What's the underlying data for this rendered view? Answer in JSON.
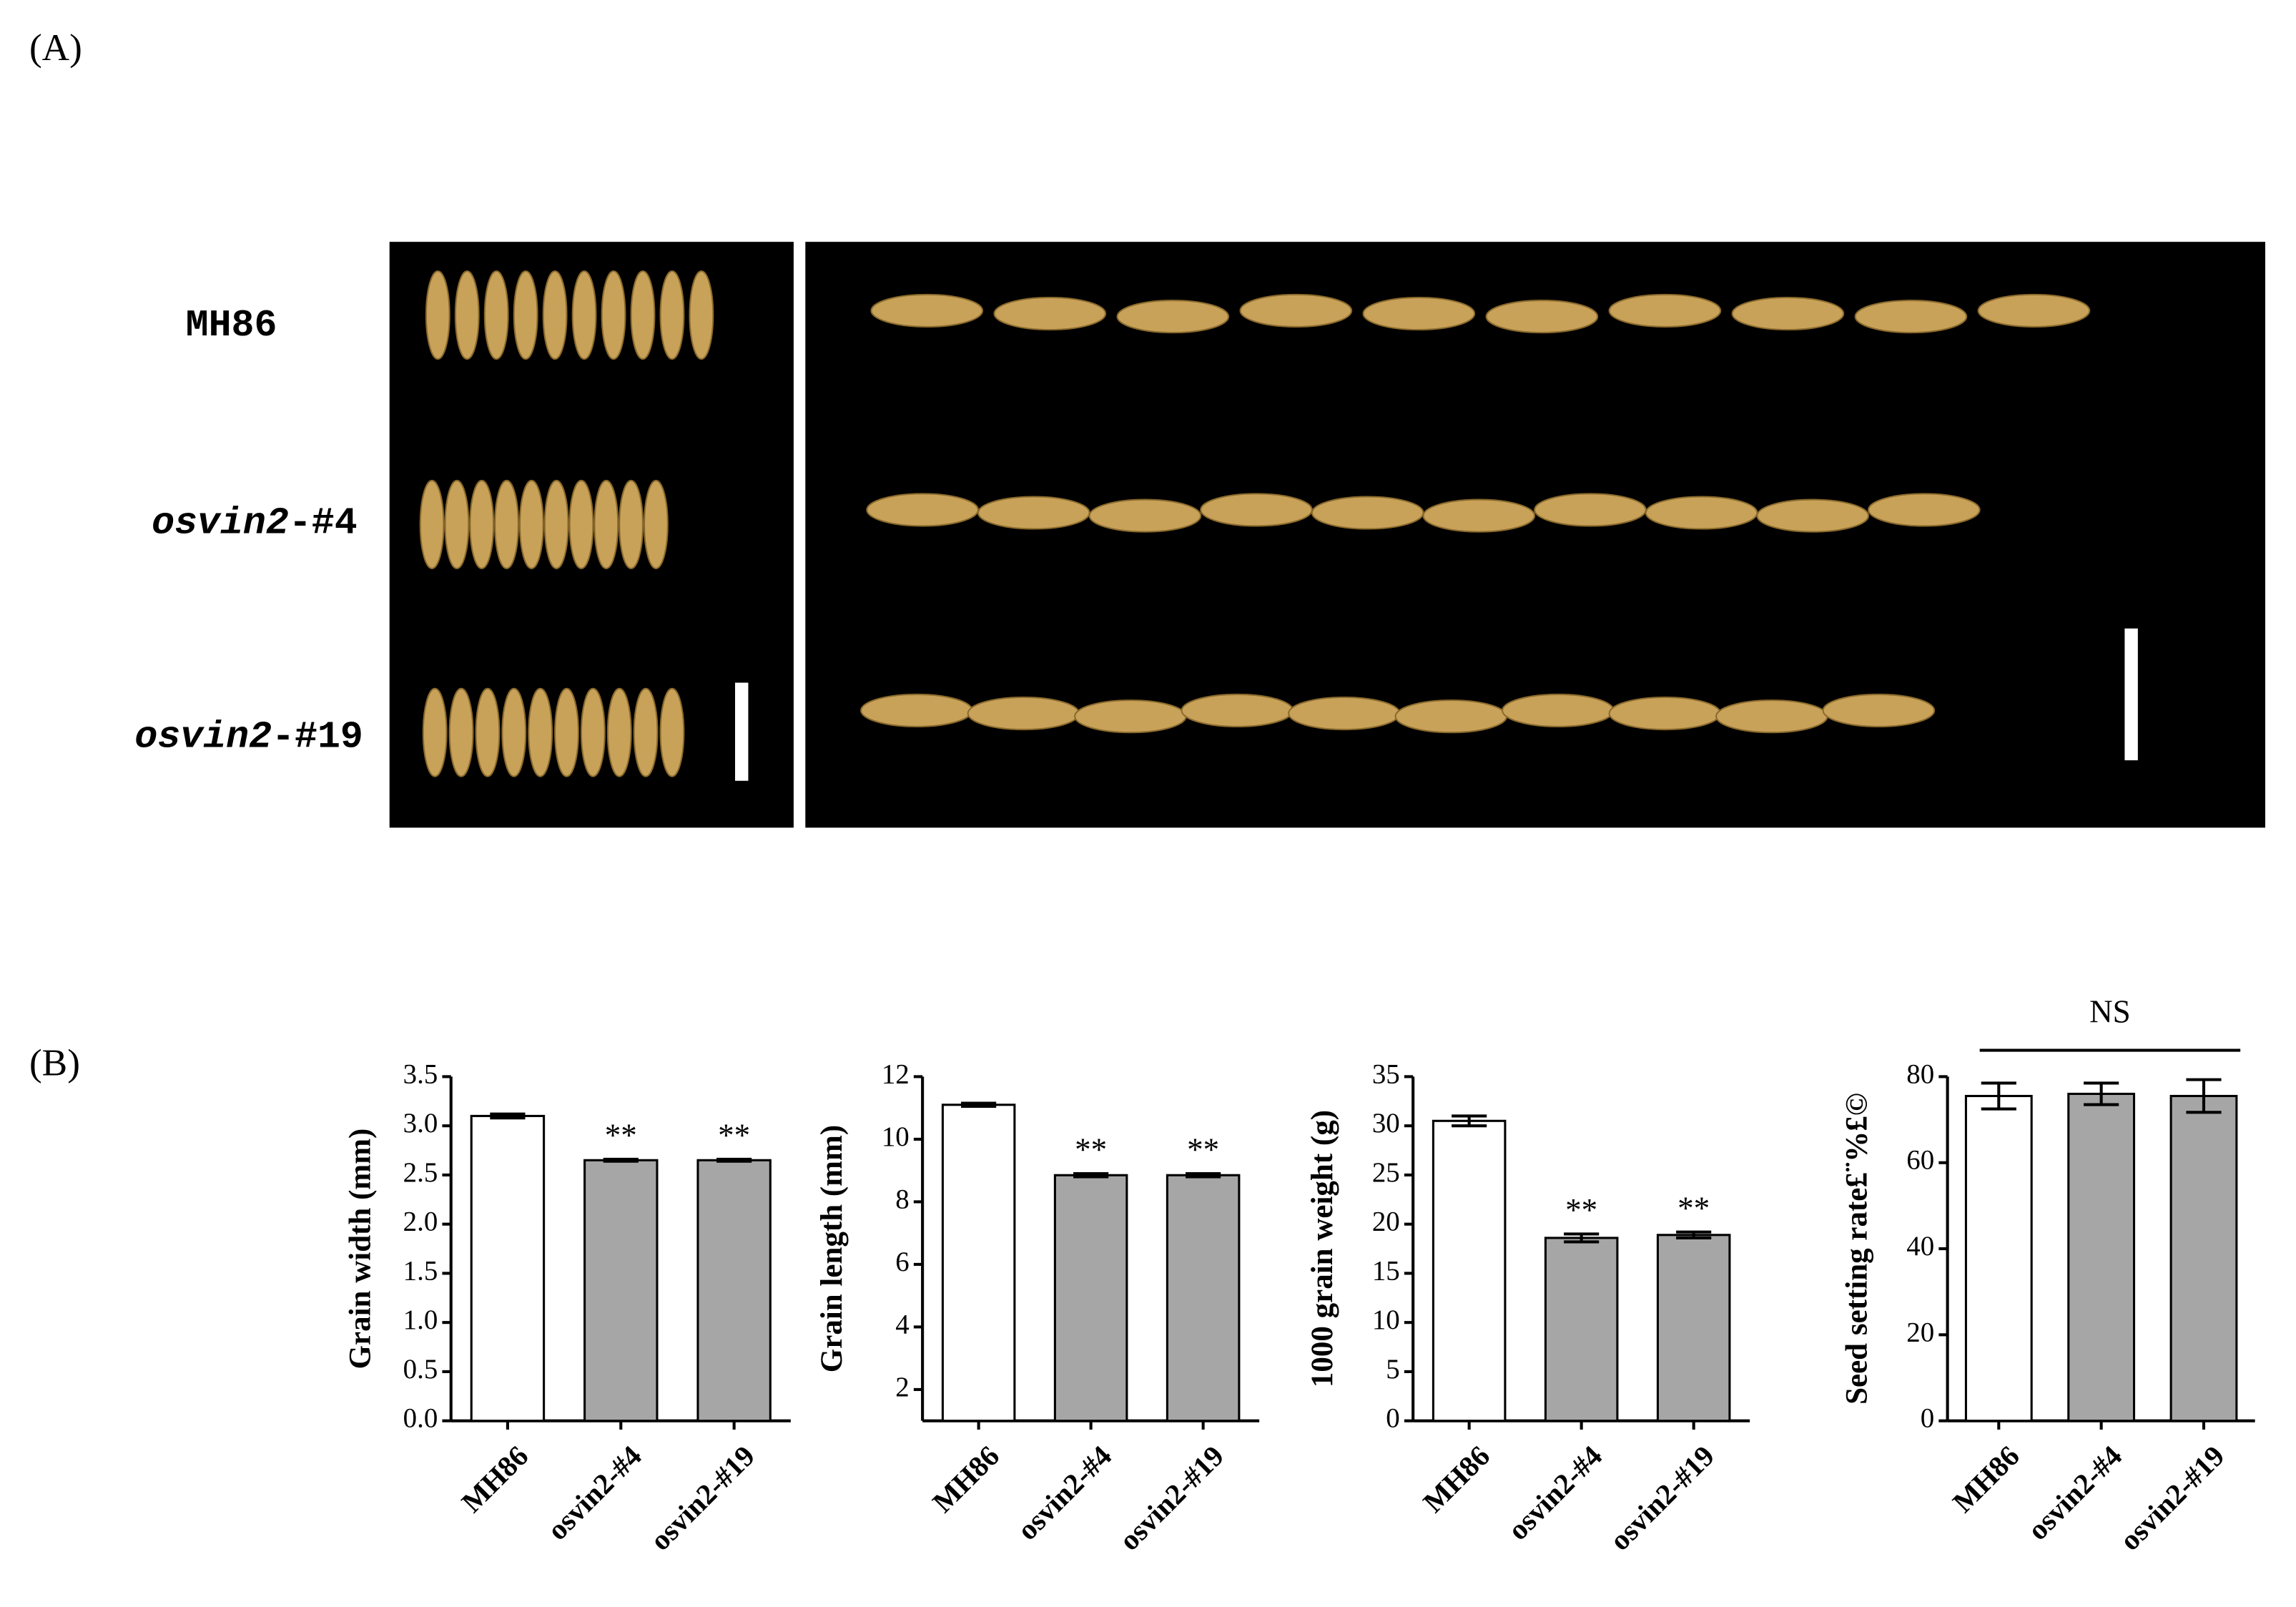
{
  "panels": {
    "a": "(A)",
    "b": "(B)"
  },
  "photo": {
    "rows": [
      {
        "name": "MH86"
      },
      {
        "name": "osvin2",
        "suffix": "-#4"
      },
      {
        "name": "osvin2",
        "suffix": "-#19"
      }
    ]
  },
  "chart_data": [
    {
      "type": "bar",
      "ylabel": "Grain width (mm)",
      "categories": [
        "MH86",
        "osvin2-#4",
        "osvin2-#19"
      ],
      "values": [
        3.1,
        2.65,
        2.65
      ],
      "errors": [
        0.02,
        0.01,
        0.01
      ],
      "colors": [
        "#ffffff",
        "#a6a6a6",
        "#a6a6a6"
      ],
      "value_annotations": [
        null,
        "**",
        "**"
      ],
      "ylim": [
        0,
        3.5
      ],
      "yticks": [
        {
          "value": 0,
          "label": "0.0"
        },
        0.5,
        {
          "value": 1,
          "label": "1.0"
        },
        1.5,
        {
          "value": 2,
          "label": "2.0"
        },
        2.5,
        {
          "value": 3,
          "label": "3.0"
        },
        3.5
      ]
    },
    {
      "type": "bar",
      "ylabel": "Grain length (mm)",
      "categories": [
        "MH86",
        "osvin2-#4",
        "osvin2-#19"
      ],
      "values": [
        11.1,
        8.85,
        8.85
      ],
      "errors": [
        0.05,
        0.05,
        0.05
      ],
      "colors": [
        "#ffffff",
        "#a6a6a6",
        "#a6a6a6"
      ],
      "value_annotations": [
        null,
        "**",
        "**"
      ],
      "ylim": [
        1,
        12
      ],
      "yticks": [
        2,
        4,
        6,
        8,
        10,
        12
      ]
    },
    {
      "type": "bar",
      "ylabel": "1000 grain weight (g)",
      "categories": [
        "MH86",
        "osvin2-#4",
        "osvin2-#19"
      ],
      "values": [
        30.5,
        18.6,
        18.9
      ],
      "errors": [
        0.5,
        0.4,
        0.3
      ],
      "colors": [
        "#ffffff",
        "#a6a6a6",
        "#a6a6a6"
      ],
      "value_annotations": [
        null,
        "**",
        "**"
      ],
      "ylim": [
        0,
        35
      ],
      "yticks": [
        0,
        5,
        10,
        15,
        20,
        25,
        30,
        35
      ]
    },
    {
      "type": "bar",
      "ylabel": "Seed setting rate£¨%£©",
      "categories": [
        "MH86",
        "osvin2-#4",
        "osvin2-#19"
      ],
      "values": [
        75.5,
        76,
        75.5
      ],
      "errors": [
        3,
        2.5,
        3.8
      ],
      "colors": [
        "#ffffff",
        "#a6a6a6",
        "#a6a6a6"
      ],
      "annotation": "NS",
      "ylim": [
        0,
        80
      ],
      "yticks": [
        0,
        20,
        40,
        60,
        80
      ]
    }
  ]
}
